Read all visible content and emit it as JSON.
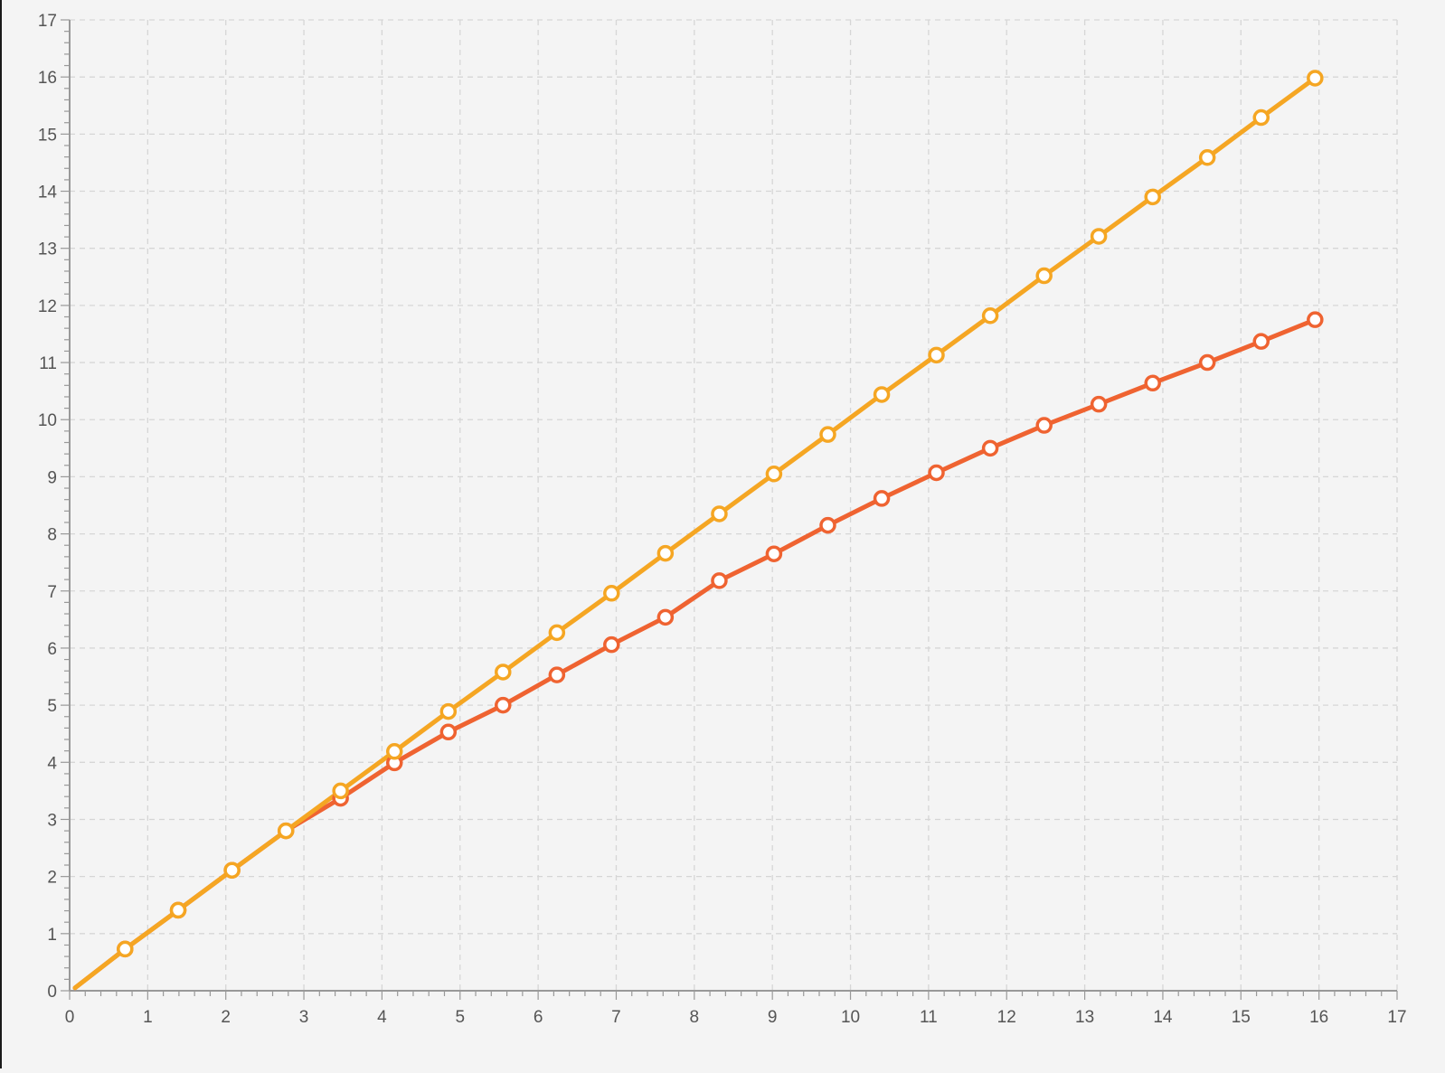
{
  "chart_data": {
    "type": "line",
    "title": "",
    "xlabel": "",
    "ylabel": "",
    "xlim": [
      0,
      17
    ],
    "ylim": [
      0,
      17
    ],
    "x_ticks": [
      "0",
      "1",
      "2",
      "3",
      "4",
      "5",
      "6",
      "7",
      "8",
      "9",
      "10",
      "11",
      "12",
      "13",
      "14",
      "15",
      "16",
      "17"
    ],
    "y_ticks": [
      "0",
      "1",
      "2",
      "3",
      "4",
      "5",
      "6",
      "7",
      "8",
      "9",
      "10",
      "11",
      "12",
      "13",
      "14",
      "15",
      "16",
      "17"
    ],
    "grid": true,
    "grid_style": "dashed",
    "legend": "none",
    "series": [
      {
        "color": "#f5a623",
        "points": [
          [
            0.07,
            0.05
          ],
          [
            0.71,
            0.73
          ],
          [
            1.39,
            1.41
          ],
          [
            2.08,
            2.11
          ],
          [
            2.77,
            2.8
          ],
          [
            3.47,
            3.5
          ],
          [
            4.16,
            4.19
          ],
          [
            4.85,
            4.89
          ],
          [
            5.55,
            5.58
          ],
          [
            6.24,
            6.27
          ],
          [
            6.94,
            6.96
          ],
          [
            7.63,
            7.66
          ],
          [
            8.32,
            8.35
          ],
          [
            9.02,
            9.05
          ],
          [
            9.71,
            9.74
          ],
          [
            10.4,
            10.44
          ],
          [
            11.1,
            11.13
          ],
          [
            11.79,
            11.82
          ],
          [
            12.48,
            12.52
          ],
          [
            13.18,
            13.21
          ],
          [
            13.87,
            13.9
          ],
          [
            14.57,
            14.59
          ],
          [
            15.26,
            15.29
          ],
          [
            15.95,
            15.98
          ]
        ]
      },
      {
        "color": "#ef6331",
        "points": [
          [
            0.07,
            0.05
          ],
          [
            0.71,
            0.73
          ],
          [
            1.39,
            1.41
          ],
          [
            2.08,
            2.11
          ],
          [
            2.77,
            2.8
          ],
          [
            3.47,
            3.37
          ],
          [
            4.16,
            3.99
          ],
          [
            4.85,
            4.53
          ],
          [
            5.55,
            5.0
          ],
          [
            6.24,
            5.53
          ],
          [
            6.94,
            6.06
          ],
          [
            7.63,
            6.54
          ],
          [
            8.32,
            7.18
          ],
          [
            9.02,
            7.65
          ],
          [
            9.71,
            8.15
          ],
          [
            10.4,
            8.62
          ],
          [
            11.1,
            9.07
          ],
          [
            11.79,
            9.5
          ],
          [
            12.48,
            9.9
          ],
          [
            13.18,
            10.27
          ],
          [
            13.87,
            10.64
          ],
          [
            14.57,
            11.0
          ],
          [
            15.26,
            11.37
          ],
          [
            15.95,
            11.75
          ]
        ]
      }
    ]
  }
}
